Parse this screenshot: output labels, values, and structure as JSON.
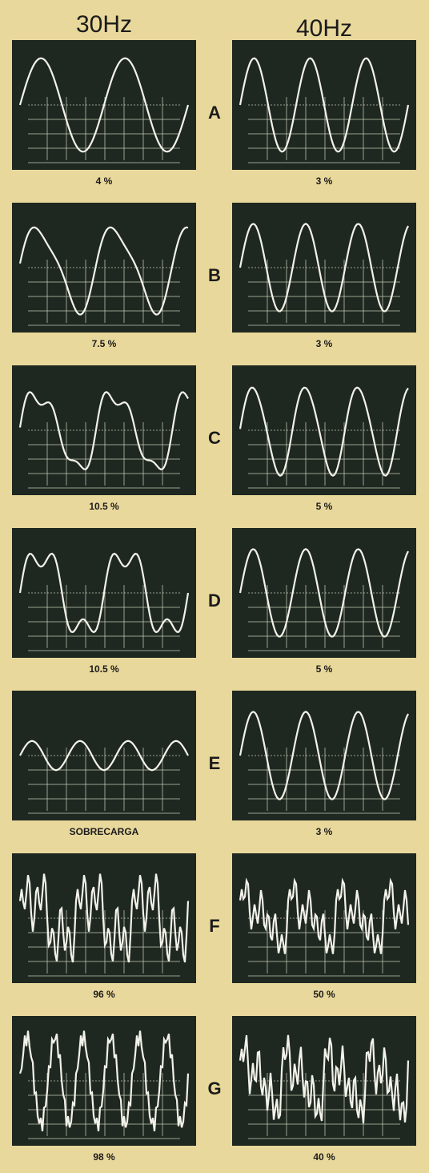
{
  "headers": [
    "30Hz",
    "40Hz"
  ],
  "rows": [
    {
      "label": "A",
      "left": "4 %",
      "right": "3 %"
    },
    {
      "label": "B",
      "left": "7.5 %",
      "right": "3 %"
    },
    {
      "label": "C",
      "left": "10.5 %",
      "right": "5 %"
    },
    {
      "label": "D",
      "left": "10.5 %",
      "right": "5 %"
    },
    {
      "label": "E",
      "left": "SOBRECARGA",
      "right": "3 %"
    },
    {
      "label": "F",
      "left": "96 %",
      "right": "50 %"
    },
    {
      "label": "G",
      "left": "98 %",
      "right": "40 %"
    }
  ]
}
